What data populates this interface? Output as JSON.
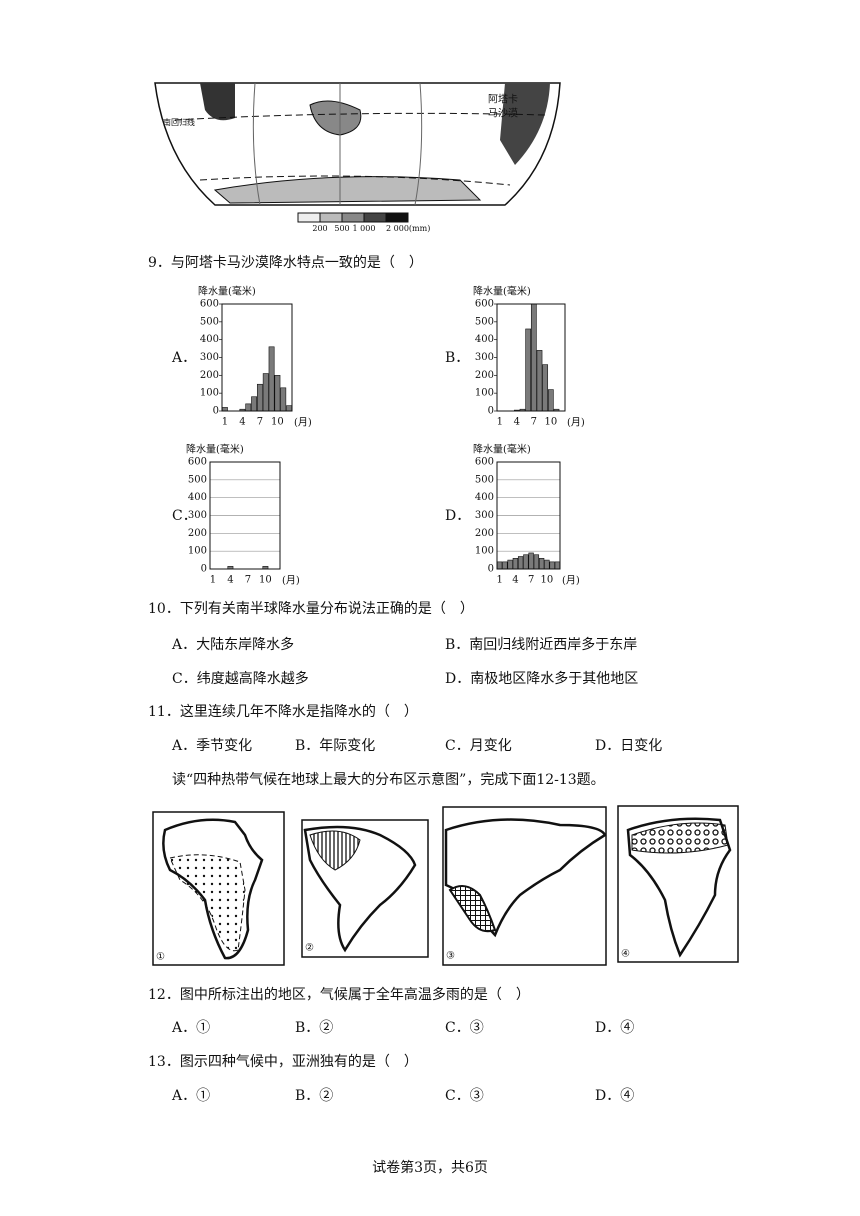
{
  "map": {
    "desert_label": [
      "阿塔卡",
      "马沙漠"
    ],
    "tropic_label": "南回归线",
    "legend_labels": [
      "200",
      "500",
      "1 000",
      "2 000(mm)"
    ]
  },
  "questions": [
    {
      "stem": "9．与阿塔卡马沙漠降水特点一致的是（　）"
    },
    {
      "stem": "10．下列有关南半球降水量分布说法正确的是（　）",
      "options": [
        "A．大陆东岸降水多",
        "B．南回归线附近西岸多于东岸",
        "C．纬度越高降水越多",
        "D．南极地区降水多于其他地区"
      ]
    },
    {
      "stem": "11．这里连续几年不降水是指降水的（　）",
      "options": [
        "A．季节变化",
        "B．年际变化",
        "C．月变化",
        "D．日变化"
      ]
    },
    {
      "stem": "12．图中所标注出的地区，气候属于全年高温多雨的是（　）",
      "options": [
        "A．①",
        "B．②",
        "C．③",
        "D．④"
      ]
    },
    {
      "stem": "13．图示四种气候中，亚洲独有的是（　）",
      "options": [
        "A．①",
        "B．②",
        "C．③",
        "D．④"
      ]
    }
  ],
  "intro": "读“四种热带气候在地球上最大的分布区示意图”，完成下面12-13题。",
  "figure_labels": [
    "①",
    "②",
    "③",
    "④"
  ],
  "footer": "试卷第3页，共6页",
  "chart_data": [
    {
      "type": "bar",
      "option_label": "A．",
      "y_label": "降水量(毫米)",
      "x_unit": "(月)",
      "categories": [
        1,
        null,
        null,
        4,
        null,
        null,
        7,
        null,
        null,
        10,
        null,
        null
      ],
      "values": [
        20,
        0,
        0,
        10,
        40,
        80,
        150,
        210,
        360,
        200,
        130,
        30
      ],
      "color": "#7a7a7a",
      "ylim": [
        0,
        600
      ],
      "yticks": [
        0,
        100,
        200,
        300,
        400,
        500,
        600
      ],
      "grid": false
    },
    {
      "type": "bar",
      "option_label": "B．",
      "y_label": "降水量(毫米)",
      "x_unit": "(月)",
      "categories": [
        1,
        null,
        null,
        4,
        null,
        null,
        7,
        null,
        null,
        10,
        null,
        null
      ],
      "values": [
        0,
        0,
        0,
        5,
        10,
        460,
        600,
        340,
        260,
        120,
        10,
        0
      ],
      "color": "#7a7a7a",
      "ylim": [
        0,
        600
      ],
      "yticks": [
        0,
        100,
        200,
        300,
        400,
        500,
        600
      ],
      "grid": false
    },
    {
      "type": "bar",
      "option_label": "C．",
      "y_label": "降水量(毫米)",
      "x_unit": "(月)",
      "categories": [
        1,
        null,
        null,
        4,
        null,
        null,
        7,
        null,
        null,
        10,
        null,
        null
      ],
      "values": [
        0,
        0,
        0,
        15,
        0,
        0,
        0,
        0,
        0,
        15,
        0,
        0
      ],
      "color": "#7a7a7a",
      "ylim": [
        0,
        600
      ],
      "yticks": [
        0,
        100,
        200,
        300,
        400,
        500,
        600
      ],
      "grid": true
    },
    {
      "type": "bar",
      "option_label": "D．",
      "y_label": "降水量(毫米)",
      "x_unit": "(月)",
      "categories": [
        1,
        null,
        null,
        4,
        null,
        null,
        7,
        null,
        null,
        10,
        null,
        null
      ],
      "values": [
        40,
        40,
        50,
        60,
        70,
        80,
        90,
        80,
        60,
        50,
        40,
        40
      ],
      "color": "#7a7a7a",
      "ylim": [
        0,
        600
      ],
      "yticks": [
        0,
        100,
        200,
        300,
        400,
        500,
        600
      ],
      "grid": true
    }
  ]
}
